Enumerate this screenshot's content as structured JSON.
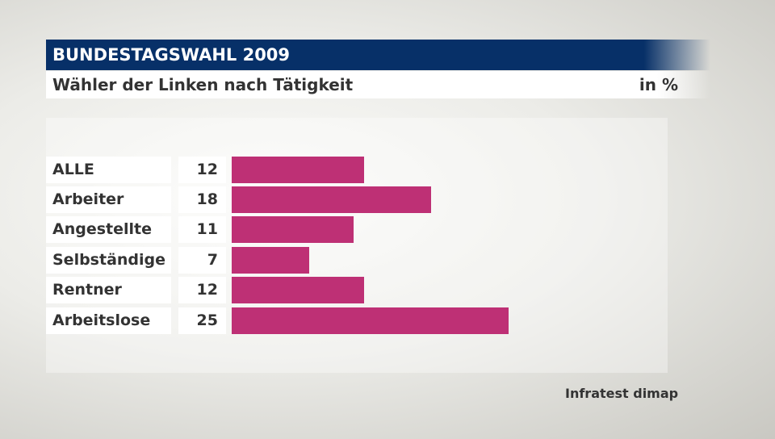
{
  "header": {
    "title": "BUNDESTAGSWAHL 2009",
    "subtitle": "Wähler der Linken nach Tätigkeit",
    "unit": "in %"
  },
  "source": "Infratest dimap",
  "chart_data": {
    "type": "bar",
    "orientation": "horizontal",
    "title": "Wähler der Linken nach Tätigkeit",
    "unit": "in %",
    "categories": [
      "ALLE",
      "Arbeiter",
      "Angestellte",
      "Selbständige",
      "Rentner",
      "Arbeitslose"
    ],
    "values": [
      12,
      18,
      11,
      7,
      12,
      25
    ],
    "color": "#be3075",
    "xlim": [
      0,
      25
    ]
  }
}
